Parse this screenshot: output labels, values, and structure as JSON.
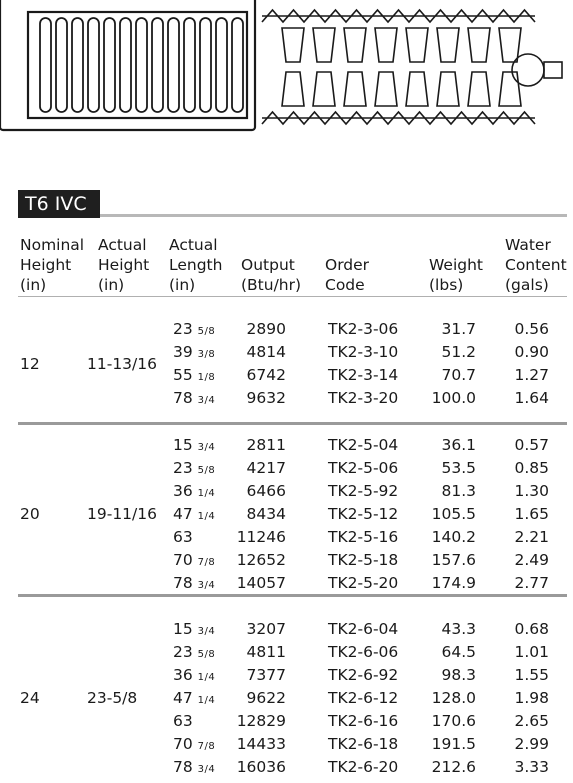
{
  "table": {
    "title": "T6 IVC",
    "headers": {
      "nominal_height": [
        "Nominal",
        "Height",
        "(in)"
      ],
      "actual_height": [
        "Actual",
        "Height",
        "(in)"
      ],
      "actual_length": [
        "Actual",
        "Length",
        "(in)"
      ],
      "output": [
        "Output",
        "(Btu/hr)"
      ],
      "order_code": [
        "Order",
        "Code"
      ],
      "weight": [
        "Weight",
        "(lbs)"
      ],
      "water_content": [
        "Water",
        "Content",
        "(gals)"
      ]
    },
    "groups": [
      {
        "nominal_height": "12",
        "actual_height": "11-13/16",
        "rows": [
          {
            "length_whole": "23",
            "length_frac": "5/8",
            "output": "2890",
            "code": "TK2-3-06",
            "weight": "31.7",
            "water": "0.56"
          },
          {
            "length_whole": "39",
            "length_frac": "3/8",
            "output": "4814",
            "code": "TK2-3-10",
            "weight": "51.2",
            "water": "0.90"
          },
          {
            "length_whole": "55",
            "length_frac": "1/8",
            "output": "6742",
            "code": "TK2-3-14",
            "weight": "70.7",
            "water": "1.27"
          },
          {
            "length_whole": "78",
            "length_frac": "3/4",
            "output": "9632",
            "code": "TK2-3-20",
            "weight": "100.0",
            "water": "1.64"
          }
        ]
      },
      {
        "nominal_height": "20",
        "actual_height": "19-11/16",
        "rows": [
          {
            "length_whole": "15",
            "length_frac": "3/4",
            "output": "2811",
            "code": "TK2-5-04",
            "weight": "36.1",
            "water": "0.57"
          },
          {
            "length_whole": "23",
            "length_frac": "5/8",
            "output": "4217",
            "code": "TK2-5-06",
            "weight": "53.5",
            "water": "0.85"
          },
          {
            "length_whole": "36",
            "length_frac": "1/4",
            "output": "6466",
            "code": "TK2-5-92",
            "weight": "81.3",
            "water": "1.30"
          },
          {
            "length_whole": "47",
            "length_frac": "1/4",
            "output": "8434",
            "code": "TK2-5-12",
            "weight": "105.5",
            "water": "1.65"
          },
          {
            "length_whole": "63",
            "length_frac": "",
            "output": "11246",
            "code": "TK2-5-16",
            "weight": "140.2",
            "water": "2.21"
          },
          {
            "length_whole": "70",
            "length_frac": "7/8",
            "output": "12652",
            "code": "TK2-5-18",
            "weight": "157.6",
            "water": "2.49"
          },
          {
            "length_whole": "78",
            "length_frac": "3/4",
            "output": "14057",
            "code": "TK2-5-20",
            "weight": "174.9",
            "water": "2.77"
          }
        ]
      },
      {
        "nominal_height": "24",
        "actual_height": "23-5/8",
        "rows": [
          {
            "length_whole": "15",
            "length_frac": "3/4",
            "output": "3207",
            "code": "TK2-6-04",
            "weight": "43.3",
            "water": "0.68"
          },
          {
            "length_whole": "23",
            "length_frac": "5/8",
            "output": "4811",
            "code": "TK2-6-06",
            "weight": "64.5",
            "water": "1.01"
          },
          {
            "length_whole": "36",
            "length_frac": "1/4",
            "output": "7377",
            "code": "TK2-6-92",
            "weight": "98.3",
            "water": "1.55"
          },
          {
            "length_whole": "47",
            "length_frac": "1/4",
            "output": "9622",
            "code": "TK2-6-12",
            "weight": "128.0",
            "water": "1.98"
          },
          {
            "length_whole": "63",
            "length_frac": "",
            "output": "12829",
            "code": "TK2-6-16",
            "weight": "170.6",
            "water": "2.65"
          },
          {
            "length_whole": "70",
            "length_frac": "7/8",
            "output": "14433",
            "code": "TK2-6-18",
            "weight": "191.5",
            "water": "2.99"
          },
          {
            "length_whole": "78",
            "length_frac": "3/4",
            "output": "16036",
            "code": "TK2-6-20",
            "weight": "212.6",
            "water": "3.33"
          }
        ]
      }
    ]
  }
}
